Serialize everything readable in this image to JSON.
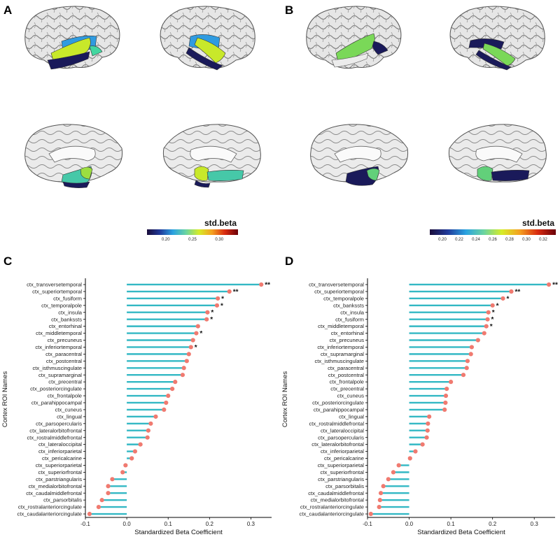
{
  "panels": {
    "A": "A",
    "B": "B",
    "C": "C",
    "D": "D"
  },
  "colorbars": [
    {
      "title": "std.beta",
      "ticks": [
        "0.20",
        "0.25",
        "0.30"
      ],
      "tick_values": [
        0.2,
        0.25,
        0.3
      ],
      "range": [
        0.165,
        0.335
      ],
      "colors": [
        "#1a0c3a",
        "#203a9a",
        "#2aa2e0",
        "#6ad4a0",
        "#d6ec28",
        "#f4a020",
        "#d82a10",
        "#6a0008"
      ]
    },
    {
      "title": "std.beta",
      "ticks": [
        "0.20",
        "0.22",
        "0.24",
        "0.26",
        "0.28",
        "0.30",
        "0.32"
      ],
      "tick_values": [
        0.2,
        0.22,
        0.24,
        0.26,
        0.28,
        0.3,
        0.32
      ],
      "range": [
        0.185,
        0.335
      ],
      "colors": [
        "#1a0c3a",
        "#203a9a",
        "#2aa2e0",
        "#6ad4a0",
        "#d6ec28",
        "#f4a020",
        "#d82a10",
        "#6a0008"
      ]
    }
  ],
  "colors": {
    "stem": "#33b8c4",
    "point": "#f07a70",
    "cortex": "#e4e4e4",
    "cortex_fold": "#6a6a6a"
  },
  "chart_data": [
    {
      "panel": "C",
      "type": "lollipop",
      "xlabel": "Standardized Beta Coefficient",
      "ylabel": "Cortex ROI Names",
      "xlim": [
        -0.1,
        0.35
      ],
      "xticks": [
        -0.1,
        0.0,
        0.1,
        0.2,
        0.3
      ],
      "xtick_labels": [
        "-0.1",
        "0.0",
        "0.1",
        "0.2",
        "0.3"
      ],
      "categories": [
        "ctx_transversetemporal",
        "ctx_superiortemporal",
        "ctx_fusiform",
        "ctx_temporalpole",
        "ctx_insula",
        "ctx_bankssts",
        "ctx_entorhinal",
        "ctx_middletemporal",
        "ctx_precuneus",
        "ctx_inferiortemporal",
        "ctx_paracentral",
        "ctx_postcentral",
        "ctx_isthmuscingulate",
        "ctx_supramarginal",
        "ctx_precentral",
        "ctx_posteriorcingulate",
        "ctx_frontalpole",
        "ctx_parahippocampal",
        "ctx_cuneus",
        "ctx_lingual",
        "ctx_parsopercularis",
        "ctx_lateralorbitofrontal",
        "ctx_rostralmiddlefrontal",
        "ctx_lateraloccipital",
        "ctx_inferiorparietal",
        "ctx_pericalcarine",
        "ctx_superiorparietal",
        "ctx_superiorfrontal",
        "ctx_parstriangularis",
        "ctx_medialorbitofrontal",
        "ctx_caudalmiddlefrontal",
        "ctx_parsorbitalis",
        "ctx_rostralanteriorcingulate",
        "ctx_caudalanteriorcingulate"
      ],
      "values": [
        0.325,
        0.248,
        0.22,
        0.218,
        0.195,
        0.193,
        0.172,
        0.168,
        0.16,
        0.155,
        0.15,
        0.145,
        0.138,
        0.135,
        0.117,
        0.11,
        0.1,
        0.095,
        0.09,
        0.07,
        0.058,
        0.052,
        0.05,
        0.033,
        0.02,
        0.012,
        -0.003,
        -0.01,
        -0.035,
        -0.045,
        -0.045,
        -0.06,
        -0.068,
        -0.09
      ],
      "significance": [
        "**",
        "**",
        "*",
        "*",
        "*",
        "*",
        "",
        "*",
        "",
        "*",
        "",
        "",
        "",
        "",
        "",
        "",
        "",
        "",
        "",
        "",
        "",
        "",
        "",
        "",
        "",
        "",
        "",
        "",
        "",
        "",
        "",
        "",
        "",
        ""
      ]
    },
    {
      "panel": "D",
      "type": "lollipop",
      "xlabel": "Standardized Beta Coefficient",
      "ylabel": "Cortex ROI Names",
      "xlim": [
        -0.1,
        0.35
      ],
      "xticks": [
        -0.1,
        0.0,
        0.1,
        0.2,
        0.3
      ],
      "xtick_labels": [
        "-0.1",
        "0.0",
        "0.1",
        "0.2",
        "0.3"
      ],
      "categories": [
        "ctx_transversetemporal",
        "ctx_superiortemporal",
        "ctx_temporalpole",
        "ctx_bankssts",
        "ctx_insula",
        "ctx_fusiform",
        "ctx_middletemporal",
        "ctx_entorhinal",
        "ctx_precuneus",
        "ctx_inferiortemporal",
        "ctx_supramarginal",
        "ctx_isthmuscingulate",
        "ctx_paracentral",
        "ctx_postcentral",
        "ctx_frontalpole",
        "ctx_precentral",
        "ctx_cuneus",
        "ctx_posteriorcingulate",
        "ctx_parahippocampal",
        "ctx_lingual",
        "ctx_rostralmiddlefrontal",
        "ctx_lateraloccipital",
        "ctx_parsopercularis",
        "ctx_lateralorbitofrontal",
        "ctx_inferiorparietal",
        "ctx_pericalcarine",
        "ctx_superiorparietal",
        "ctx_superiorfrontal",
        "ctx_parstriangularis",
        "ctx_parsorbitalis",
        "ctx_caudalmiddlefrontal",
        "ctx_medialorbitofrontal",
        "ctx_rostralanteriorcingulate",
        "ctx_caudalanteriorcingulate"
      ],
      "values": [
        0.335,
        0.245,
        0.225,
        0.2,
        0.19,
        0.188,
        0.185,
        0.18,
        0.165,
        0.15,
        0.148,
        0.14,
        0.138,
        0.13,
        0.1,
        0.09,
        0.088,
        0.087,
        0.085,
        0.048,
        0.045,
        0.044,
        0.042,
        0.032,
        0.015,
        0.002,
        -0.025,
        -0.038,
        -0.05,
        -0.062,
        -0.068,
        -0.07,
        -0.072,
        -0.092
      ],
      "significance": [
        "**",
        "**",
        "*",
        "*",
        "*",
        "*",
        "*",
        "",
        "",
        "",
        "",
        "",
        "",
        "",
        "",
        "",
        "",
        "",
        "",
        "",
        "",
        "",
        "",
        "",
        "",
        "",
        "",
        "",
        "",
        "",
        "",
        "",
        "",
        ""
      ]
    }
  ]
}
